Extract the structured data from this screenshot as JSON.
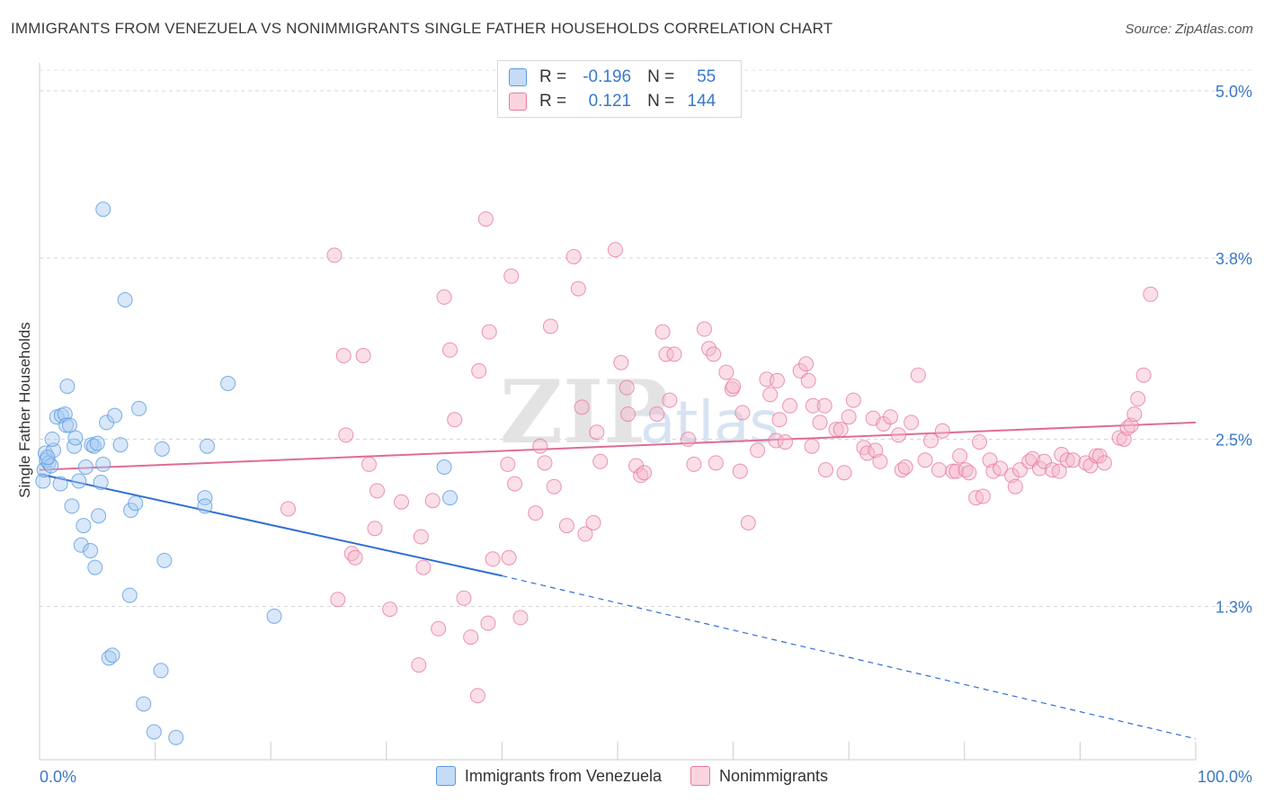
{
  "header": {
    "title": "IMMIGRANTS FROM VENEZUELA VS NONIMMIGRANTS SINGLE FATHER HOUSEHOLDS CORRELATION CHART",
    "source": "Source: ZipAtlas.com"
  },
  "watermark": "ZIPatlas",
  "stats": {
    "rows": [
      {
        "r_label": "R =",
        "r_value": "-0.196",
        "n_label": "N =",
        "n_value": "55",
        "color": "#a9c9f1"
      },
      {
        "r_label": "R =",
        "r_value": "0.121",
        "n_label": "N =",
        "n_value": "144",
        "color": "#f5b8cb"
      }
    ]
  },
  "legend": {
    "items": [
      {
        "label": "Immigrants from Venezuela",
        "color": "#a9c9f1"
      },
      {
        "label": "Nonimmigrants",
        "color": "#f5b8cb"
      }
    ]
  },
  "chart_data": {
    "type": "scatter",
    "title": "IMMIGRANTS FROM VENEZUELA VS NONIMMIGRANTS SINGLE FATHER HOUSEHOLDS CORRELATION CHART",
    "xlabel": "",
    "ylabel": "Single Father Households",
    "xlim": [
      0,
      100
    ],
    "ylim": [
      0.2,
      5.2
    ],
    "x_ticks": [
      {
        "value": 0,
        "label": "0.0%"
      },
      {
        "value": 100,
        "label": "100.0%"
      }
    ],
    "y_ticks": [
      {
        "value": 1.3,
        "label": "1.3%"
      },
      {
        "value": 2.5,
        "label": "2.5%"
      },
      {
        "value": 3.8,
        "label": "3.8%"
      },
      {
        "value": 5.0,
        "label": "5.0%"
      }
    ],
    "grid": true,
    "legend_position": "bottom",
    "series": [
      {
        "name": "Immigrants from Venezuela",
        "color": "#5b9be0",
        "fill": "#a9c9f1",
        "points": [
          [
            0.3,
            2.2
          ],
          [
            0.4,
            2.28
          ],
          [
            0.5,
            2.4
          ],
          [
            0.6,
            2.35
          ],
          [
            0.8,
            2.33
          ],
          [
            1.0,
            2.31
          ],
          [
            1.2,
            2.42
          ],
          [
            1.5,
            2.66
          ],
          [
            1.8,
            2.18
          ],
          [
            1.9,
            2.67
          ],
          [
            2.2,
            2.68
          ],
          [
            2.3,
            2.6
          ],
          [
            2.4,
            2.88
          ],
          [
            2.6,
            2.6
          ],
          [
            2.8,
            2.02
          ],
          [
            3.0,
            2.45
          ],
          [
            3.1,
            2.51
          ],
          [
            3.4,
            2.2
          ],
          [
            3.6,
            1.74
          ],
          [
            3.8,
            1.88
          ],
          [
            4.0,
            2.3
          ],
          [
            4.4,
            1.7
          ],
          [
            4.5,
            2.46
          ],
          [
            4.7,
            2.45
          ],
          [
            4.8,
            1.58
          ],
          [
            5.0,
            2.47
          ],
          [
            5.1,
            1.95
          ],
          [
            5.3,
            2.19
          ],
          [
            5.5,
            2.32
          ],
          [
            5.5,
            4.15
          ],
          [
            5.8,
            2.62
          ],
          [
            6.0,
            0.93
          ],
          [
            6.3,
            0.95
          ],
          [
            6.5,
            2.67
          ],
          [
            7.0,
            2.46
          ],
          [
            7.4,
            3.5
          ],
          [
            7.8,
            1.38
          ],
          [
            7.9,
            1.99
          ],
          [
            8.3,
            2.04
          ],
          [
            8.6,
            2.72
          ],
          [
            9.0,
            0.6
          ],
          [
            9.9,
            0.4
          ],
          [
            10.5,
            0.84
          ],
          [
            10.6,
            2.43
          ],
          [
            10.8,
            1.63
          ],
          [
            11.8,
            0.36
          ],
          [
            14.3,
            2.08
          ],
          [
            14.3,
            2.02
          ],
          [
            14.5,
            2.45
          ],
          [
            16.3,
            2.9
          ],
          [
            20.3,
            1.23
          ],
          [
            35.0,
            2.3
          ],
          [
            35.5,
            2.08
          ],
          [
            0.7,
            2.37
          ],
          [
            1.1,
            2.5
          ]
        ]
      },
      {
        "name": "Nonimmigrants",
        "color": "#e77aa0",
        "fill": "#f5b8cb",
        "points": [
          [
            21.5,
            2.0
          ],
          [
            25.5,
            3.82
          ],
          [
            25.8,
            1.35
          ],
          [
            26.3,
            3.1
          ],
          [
            26.5,
            2.53
          ],
          [
            27.0,
            1.68
          ],
          [
            27.3,
            1.65
          ],
          [
            28.0,
            3.1
          ],
          [
            29.0,
            1.86
          ],
          [
            29.2,
            2.13
          ],
          [
            30.3,
            1.28
          ],
          [
            31.3,
            2.05
          ],
          [
            32.8,
            0.88
          ],
          [
            33.2,
            1.58
          ],
          [
            34.0,
            2.06
          ],
          [
            34.5,
            1.14
          ],
          [
            35.0,
            3.52
          ],
          [
            35.5,
            3.14
          ],
          [
            35.9,
            2.64
          ],
          [
            36.7,
            1.36
          ],
          [
            37.3,
            1.08
          ],
          [
            37.9,
            0.66
          ],
          [
            38.0,
            2.99
          ],
          [
            38.6,
            4.08
          ],
          [
            38.8,
            1.18
          ],
          [
            38.9,
            3.27
          ],
          [
            39.2,
            1.64
          ],
          [
            40.5,
            2.32
          ],
          [
            40.6,
            1.65
          ],
          [
            40.8,
            3.67
          ],
          [
            41.1,
            2.18
          ],
          [
            41.6,
            1.22
          ],
          [
            42.9,
            1.97
          ],
          [
            43.3,
            2.45
          ],
          [
            43.7,
            2.33
          ],
          [
            44.2,
            3.31
          ],
          [
            44.5,
            2.16
          ],
          [
            45.6,
            1.88
          ],
          [
            46.2,
            3.81
          ],
          [
            46.6,
            3.58
          ],
          [
            46.9,
            2.73
          ],
          [
            47.2,
            1.82
          ],
          [
            47.9,
            1.9
          ],
          [
            48.2,
            2.55
          ],
          [
            48.5,
            2.34
          ],
          [
            49.8,
            3.86
          ],
          [
            50.3,
            3.05
          ],
          [
            50.8,
            2.87
          ],
          [
            50.9,
            2.68
          ],
          [
            51.6,
            2.31
          ],
          [
            52.0,
            2.24
          ],
          [
            52.3,
            2.26
          ],
          [
            53.4,
            2.68
          ],
          [
            53.9,
            3.27
          ],
          [
            54.2,
            3.11
          ],
          [
            54.5,
            2.78
          ],
          [
            54.9,
            3.11
          ],
          [
            56.1,
            2.5
          ],
          [
            56.6,
            2.32
          ],
          [
            57.5,
            3.29
          ],
          [
            57.9,
            3.15
          ],
          [
            58.3,
            3.11
          ],
          [
            58.5,
            2.33
          ],
          [
            59.4,
            2.98
          ],
          [
            59.9,
            2.86
          ],
          [
            60.0,
            2.88
          ],
          [
            60.6,
            2.27
          ],
          [
            60.8,
            2.69
          ],
          [
            61.3,
            1.9
          ],
          [
            62.1,
            2.42
          ],
          [
            62.9,
            2.93
          ],
          [
            63.2,
            2.82
          ],
          [
            63.7,
            2.49
          ],
          [
            63.8,
            2.92
          ],
          [
            64.0,
            2.64
          ],
          [
            64.5,
            2.48
          ],
          [
            64.9,
            2.74
          ],
          [
            65.8,
            2.99
          ],
          [
            66.3,
            3.04
          ],
          [
            66.5,
            2.92
          ],
          [
            66.8,
            2.45
          ],
          [
            66.9,
            2.74
          ],
          [
            67.5,
            2.62
          ],
          [
            67.9,
            2.74
          ],
          [
            68.0,
            2.28
          ],
          [
            68.9,
            2.57
          ],
          [
            69.3,
            2.57
          ],
          [
            69.6,
            2.26
          ],
          [
            70.0,
            2.66
          ],
          [
            70.4,
            2.78
          ],
          [
            71.3,
            2.44
          ],
          [
            71.6,
            2.4
          ],
          [
            72.1,
            2.65
          ],
          [
            72.3,
            2.42
          ],
          [
            72.7,
            2.34
          ],
          [
            73.0,
            2.61
          ],
          [
            73.6,
            2.66
          ],
          [
            74.3,
            2.53
          ],
          [
            74.6,
            2.28
          ],
          [
            74.9,
            2.3
          ],
          [
            75.4,
            2.62
          ],
          [
            76.0,
            2.96
          ],
          [
            76.6,
            2.35
          ],
          [
            77.1,
            2.49
          ],
          [
            77.8,
            2.28
          ],
          [
            78.1,
            2.56
          ],
          [
            79.0,
            2.27
          ],
          [
            79.3,
            2.27
          ],
          [
            79.6,
            2.38
          ],
          [
            80.1,
            2.28
          ],
          [
            80.4,
            2.26
          ],
          [
            81.0,
            2.08
          ],
          [
            81.3,
            2.48
          ],
          [
            81.6,
            2.09
          ],
          [
            82.2,
            2.35
          ],
          [
            82.5,
            2.27
          ],
          [
            83.1,
            2.29
          ],
          [
            84.1,
            2.24
          ],
          [
            84.4,
            2.16
          ],
          [
            84.8,
            2.28
          ],
          [
            85.6,
            2.34
          ],
          [
            85.9,
            2.36
          ],
          [
            86.5,
            2.29
          ],
          [
            86.9,
            2.34
          ],
          [
            87.6,
            2.28
          ],
          [
            88.2,
            2.27
          ],
          [
            88.4,
            2.39
          ],
          [
            88.9,
            2.35
          ],
          [
            89.4,
            2.35
          ],
          [
            90.5,
            2.33
          ],
          [
            90.9,
            2.31
          ],
          [
            91.4,
            2.38
          ],
          [
            91.7,
            2.38
          ],
          [
            92.1,
            2.33
          ],
          [
            93.4,
            2.51
          ],
          [
            93.8,
            2.5
          ],
          [
            94.1,
            2.58
          ],
          [
            94.4,
            2.6
          ],
          [
            94.7,
            2.68
          ],
          [
            95.0,
            2.79
          ],
          [
            95.5,
            2.96
          ],
          [
            96.1,
            3.54
          ],
          [
            28.5,
            2.32
          ],
          [
            33.0,
            1.8
          ]
        ]
      }
    ],
    "trend_lines": [
      {
        "series": "Immigrants from Venezuela",
        "color": "#2f6fd1",
        "x0": 0,
        "y0": 2.25,
        "x1": 40,
        "y1": 1.52,
        "dashed_to_x": 100,
        "dashed_to_y": 0.35
      },
      {
        "series": "Nonimmigrants",
        "color": "#e06c96",
        "x0": 0,
        "y0": 2.28,
        "x1": 100,
        "y1": 2.62
      }
    ]
  }
}
